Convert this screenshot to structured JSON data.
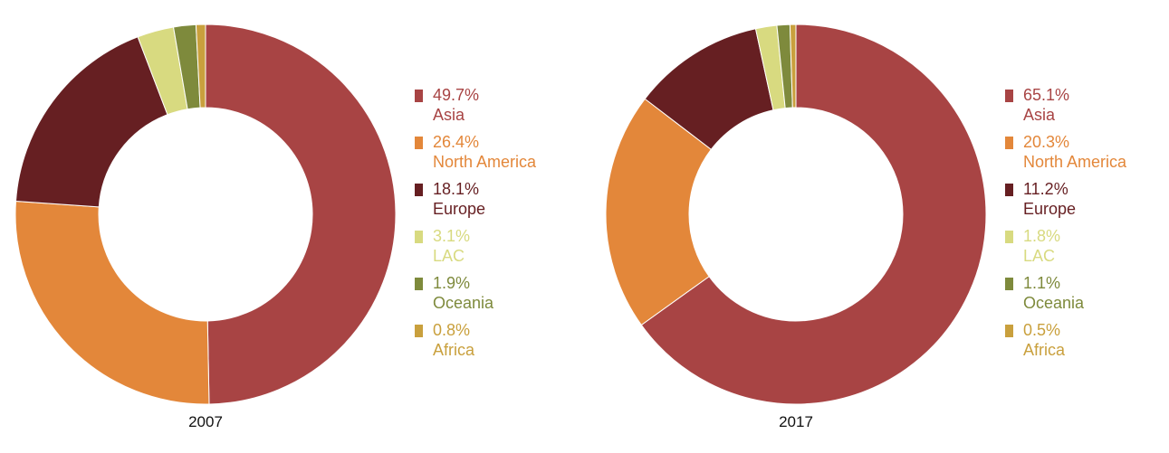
{
  "chart_data": [
    {
      "type": "pie",
      "year_label": "2007",
      "slices": [
        {
          "label": "Asia",
          "value": 49.7,
          "value_label": "49.7%",
          "color": "#a84444"
        },
        {
          "label": "North America",
          "value": 26.4,
          "value_label": "26.4%",
          "color": "#e3873a"
        },
        {
          "label": "Europe",
          "value": 18.1,
          "value_label": "18.1%",
          "color": "#661f22"
        },
        {
          "label": "LAC",
          "value": 3.1,
          "value_label": "3.1%",
          "color": "#d8da80"
        },
        {
          "label": "Oceania",
          "value": 1.9,
          "value_label": "1.9%",
          "color": "#7e8a3c"
        },
        {
          "label": "Africa",
          "value": 0.8,
          "value_label": "0.8%",
          "color": "#c9a03d"
        }
      ]
    },
    {
      "type": "pie",
      "year_label": "2017",
      "slices": [
        {
          "label": "Asia",
          "value": 65.1,
          "value_label": "65.1%",
          "color": "#a84444"
        },
        {
          "label": "North America",
          "value": 20.3,
          "value_label": "20.3%",
          "color": "#e3873a"
        },
        {
          "label": "Europe",
          "value": 11.2,
          "value_label": "11.2%",
          "color": "#661f22"
        },
        {
          "label": "LAC",
          "value": 1.8,
          "value_label": "1.8%",
          "color": "#d8da80"
        },
        {
          "label": "Oceania",
          "value": 1.1,
          "value_label": "1.1%",
          "color": "#7e8a3c"
        },
        {
          "label": "Africa",
          "value": 0.5,
          "value_label": "0.5%",
          "color": "#c9a03d"
        }
      ]
    }
  ]
}
